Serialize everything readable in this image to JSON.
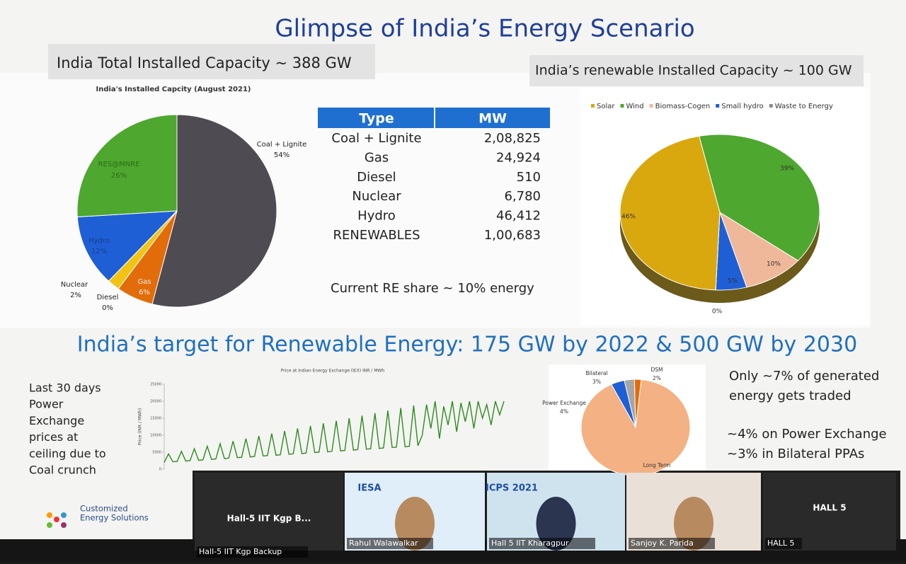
{
  "slide": {
    "title": "Glimpse of India’s Energy Scenario",
    "installed_header": "India Total Installed Capacity ~ 388 GW",
    "renewable_header": "India’s renewable Installed Capacity ~ 100 GW",
    "re_share": "Current RE share ~ 10% energy",
    "target": "India’s target for Renewable Energy: 175 GW by 2022 & 500 GW by 2030",
    "price_note": [
      "Last 30 days",
      "Power",
      "Exchange",
      "prices at",
      "ceiling due to",
      "Coal crunch"
    ],
    "trade_note": [
      "Only ~7% of generated",
      "energy gets traded"
    ],
    "exchange_note": [
      "~4% on Power Exchange",
      "~3% in Bilateral PPAs"
    ]
  },
  "installed_pie": {
    "type": "pie",
    "title": "India's Installed Capcity (August 2021)",
    "categories": [
      "Coal + Lignite",
      "Gas",
      "Diesel",
      "Nuclear",
      "Hydro",
      "RES@MNRE"
    ],
    "values": [
      54,
      6,
      0,
      2,
      12,
      26
    ],
    "value_labels": [
      "54%",
      "6%",
      "0%",
      "2%",
      "12%",
      "26%"
    ],
    "colors": [
      "#4f4b52",
      "#e36c0a",
      "#8c8c8c",
      "#f2c314",
      "#1f5fd6",
      "#4ea72e"
    ]
  },
  "capacity_table": {
    "header": [
      "Type",
      "MW"
    ],
    "rows": [
      [
        "Coal + Lignite",
        "2,08,825"
      ],
      [
        "Gas",
        "24,924"
      ],
      [
        "Diesel",
        "510"
      ],
      [
        "Nuclear",
        "6,780"
      ],
      [
        "Hydro",
        "46,412"
      ],
      [
        "RENEWABLES",
        "1,00,683"
      ]
    ]
  },
  "renewable_pie": {
    "type": "pie",
    "categories": [
      "Wind",
      "Biomass-Cogen",
      "Small hydro",
      "Waste to Energy",
      "Solar"
    ],
    "values": [
      39,
      10,
      5,
      0,
      46
    ],
    "value_labels": [
      "39%",
      "10%",
      "5%",
      "0%",
      "46%"
    ],
    "colors": [
      "#4ea72e",
      "#f0b89a",
      "#1f5fd6",
      "#8c8c8c",
      "#d9a80f"
    ],
    "legend_order": [
      4,
      0,
      1,
      2,
      3
    ]
  },
  "price_chart": {
    "type": "line",
    "title": "Price at Indian Energy Exchange (IEX) INR / MWh",
    "ylabel": "Price (INR / MWh)",
    "color": "#2e8b1f",
    "ylim": [
      0,
      25000
    ],
    "yticks": [
      0,
      5000,
      10000,
      15000,
      20000,
      25000
    ],
    "values": [
      2000,
      4500,
      2200,
      2250,
      5250,
      2400,
      2500,
      6000,
      2600,
      2750,
      6750,
      2900,
      3000,
      7500,
      3100,
      3250,
      8250,
      3400,
      3500,
      9000,
      3600,
      3750,
      9750,
      3900,
      4000,
      10500,
      4100,
      4250,
      11250,
      4400,
      4500,
      12000,
      4600,
      4750,
      12750,
      4900,
      5000,
      13500,
      5100,
      5250,
      14250,
      5400,
      5500,
      15000,
      5600,
      5750,
      15750,
      5900,
      6000,
      16500,
      6100,
      6250,
      17250,
      6400,
      6500,
      18000,
      6600,
      6750,
      18750,
      6900,
      10000,
      19000,
      12000,
      20000,
      9000,
      18500,
      13000,
      20000,
      11000,
      19500,
      14000,
      20000,
      12000,
      20000,
      15000,
      19000,
      13000,
      20000,
      16000,
      20000
    ]
  },
  "trade_pie": {
    "type": "pie",
    "categories": [
      "Long Term",
      "Power Exchange",
      "Bilateral",
      "DSM"
    ],
    "values": [
      91,
      4,
      3,
      2
    ],
    "value_labels": [
      null,
      "4%",
      "3%",
      "2%"
    ],
    "colors": [
      "#f4b183",
      "#1f5fd6",
      "#a5a5a5",
      "#e36c0a"
    ]
  },
  "logo": {
    "name": [
      "Customized",
      "Energy Solutions"
    ]
  },
  "video_tiles": [
    {
      "label": "Hall-5 IIT Kgp B...",
      "name": "Hall-5 IIT Kgp Backup"
    },
    {
      "label": "IESA",
      "name": "Rahul Walawalkar"
    },
    {
      "label": "ICPS 2021",
      "name": "Hall 5 IIT Kharagpur"
    },
    {
      "name": "Sanjoy K. Parida"
    },
    {
      "label": "HALL 5",
      "name": "HALL 5"
    }
  ]
}
